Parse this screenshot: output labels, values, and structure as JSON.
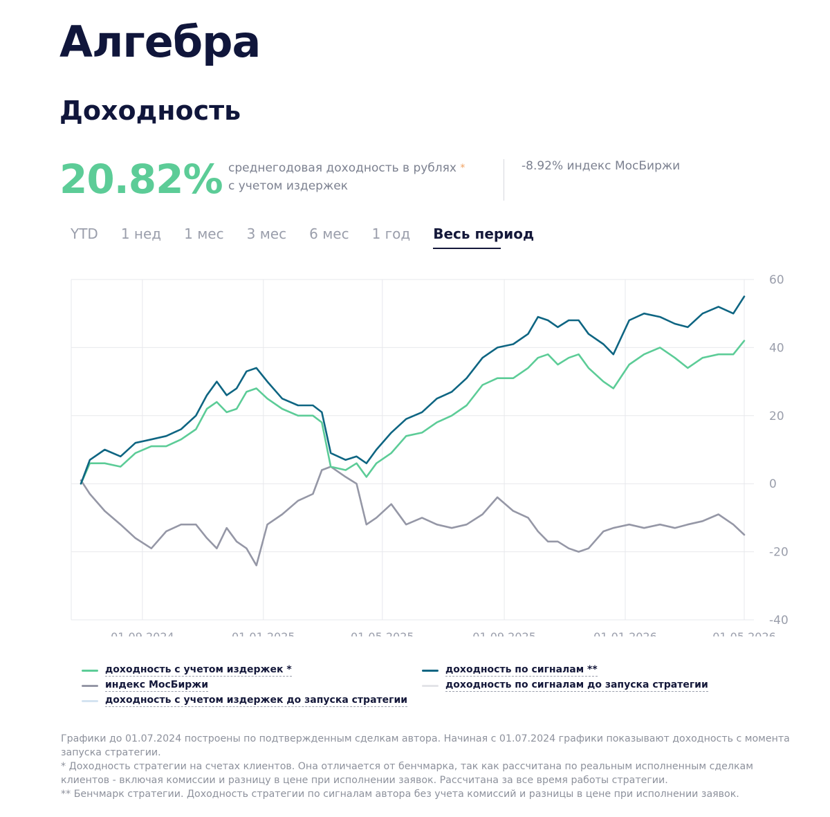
{
  "header": {
    "title": "Алгебра",
    "subtitle": "Доходность"
  },
  "summary": {
    "annual_return": "20.82%",
    "description_line1": "среднегодовая доходность в рублях",
    "description_line2": "с учетом издержек",
    "asterisk": "*",
    "index_text": "-8.92% индекс МосБиржи"
  },
  "tabs": [
    {
      "label": "YTD"
    },
    {
      "label": "1 нед"
    },
    {
      "label": "1 мес"
    },
    {
      "label": "3 мес"
    },
    {
      "label": "6 мес"
    },
    {
      "label": "1 год"
    },
    {
      "label": "Весь период",
      "active": true
    }
  ],
  "legend": {
    "net": "доходность с учетом издержек *",
    "signals": "доходность по сигналам **",
    "index": "индекс МосБиржи",
    "signals_pre": "доходность по сигналам до запуска стратегии",
    "net_pre": "доходность с учетом издержек до запуска стратегии"
  },
  "notes": [
    "Графики до 01.07.2024 построены по подтвержденным сделкам автора. Начиная с 01.07.2024 графики показывают доходность с момента запуска стратегии.",
    "* Доходность стратегии на счетах клиентов. Она отличается от бенчмарка, так как рассчитана по реальным исполненным сделкам клиентов - включая комиссии и разницу в цене при исполнении заявок. Рассчитана за все время работы стратегии.",
    "** Бенчмарк стратегии. Доходность стратегии по сигналам автора без учета комиссий и разницы в цене при исполнении заявок."
  ],
  "colors": {
    "net": "#5ccc97",
    "signals": "#0e6582",
    "index": "#9597a6",
    "signals_pre": "#e3e4e8",
    "net_pre": "#d4e3f1",
    "grid": "#e7e8ec",
    "axis_text": "#9a9eab"
  },
  "chart_data": {
    "type": "line",
    "x_type": "date",
    "x_range": [
      "2024-07-01",
      "2026-05-01"
    ],
    "x_ticks": [
      "01.09.2024",
      "01.01.2025",
      "01.05.2025",
      "01.09.2025",
      "01.01.2026",
      "01.05.2026"
    ],
    "x_tick_dates": [
      "2024-09-01",
      "2025-01-01",
      "2025-05-01",
      "2025-09-01",
      "2026-01-01",
      "2026-05-01"
    ],
    "y_ticks": [
      60,
      40,
      20,
      0,
      -20,
      -40
    ],
    "ylim": [
      -40,
      60
    ],
    "y_axis_side": "right",
    "grid": true,
    "legend_position": "bottom",
    "series": [
      {
        "name": "доходность с учетом издержек *",
        "key": "net",
        "points": [
          [
            "2024-07-01",
            0
          ],
          [
            "2024-07-10",
            6
          ],
          [
            "2024-07-25",
            6
          ],
          [
            "2024-08-10",
            5
          ],
          [
            "2024-08-25",
            9
          ],
          [
            "2024-09-10",
            11
          ],
          [
            "2024-09-25",
            11
          ],
          [
            "2024-10-10",
            13
          ],
          [
            "2024-10-25",
            16
          ],
          [
            "2024-11-05",
            22
          ],
          [
            "2024-11-15",
            24
          ],
          [
            "2024-11-25",
            21
          ],
          [
            "2024-12-05",
            22
          ],
          [
            "2024-12-15",
            27
          ],
          [
            "2024-12-25",
            28
          ],
          [
            "2025-01-05",
            25
          ],
          [
            "2025-01-20",
            22
          ],
          [
            "2025-02-05",
            20
          ],
          [
            "2025-02-20",
            20
          ],
          [
            "2025-03-01",
            18
          ],
          [
            "2025-03-10",
            5
          ],
          [
            "2025-03-25",
            4
          ],
          [
            "2025-04-05",
            6
          ],
          [
            "2025-04-15",
            2
          ],
          [
            "2025-04-25",
            6
          ],
          [
            "2025-05-10",
            9
          ],
          [
            "2025-05-25",
            14
          ],
          [
            "2025-06-10",
            15
          ],
          [
            "2025-06-25",
            18
          ],
          [
            "2025-07-10",
            20
          ],
          [
            "2025-07-25",
            23
          ],
          [
            "2025-08-10",
            29
          ],
          [
            "2025-08-25",
            31
          ],
          [
            "2025-09-10",
            31
          ],
          [
            "2025-09-25",
            34
          ],
          [
            "2025-10-05",
            37
          ],
          [
            "2025-10-15",
            38
          ],
          [
            "2025-10-25",
            35
          ],
          [
            "2025-11-05",
            37
          ],
          [
            "2025-11-15",
            38
          ],
          [
            "2025-11-25",
            34
          ],
          [
            "2025-12-10",
            30
          ],
          [
            "2025-12-20",
            28
          ],
          [
            "2026-01-05",
            35
          ],
          [
            "2026-01-20",
            38
          ],
          [
            "2026-02-05",
            40
          ],
          [
            "2026-02-20",
            37
          ],
          [
            "2026-03-05",
            34
          ],
          [
            "2026-03-20",
            37
          ],
          [
            "2026-04-05",
            38
          ],
          [
            "2026-04-20",
            38
          ],
          [
            "2026-05-01",
            42
          ]
        ]
      },
      {
        "name": "доходность по сигналам **",
        "key": "signals",
        "points": [
          [
            "2024-07-01",
            0
          ],
          [
            "2024-07-10",
            7
          ],
          [
            "2024-07-25",
            10
          ],
          [
            "2024-08-10",
            8
          ],
          [
            "2024-08-25",
            12
          ],
          [
            "2024-09-10",
            13
          ],
          [
            "2024-09-25",
            14
          ],
          [
            "2024-10-10",
            16
          ],
          [
            "2024-10-25",
            20
          ],
          [
            "2024-11-05",
            26
          ],
          [
            "2024-11-15",
            30
          ],
          [
            "2024-11-25",
            26
          ],
          [
            "2024-12-05",
            28
          ],
          [
            "2024-12-15",
            33
          ],
          [
            "2024-12-25",
            34
          ],
          [
            "2025-01-05",
            30
          ],
          [
            "2025-01-20",
            25
          ],
          [
            "2025-02-05",
            23
          ],
          [
            "2025-02-20",
            23
          ],
          [
            "2025-03-01",
            21
          ],
          [
            "2025-03-10",
            9
          ],
          [
            "2025-03-25",
            7
          ],
          [
            "2025-04-05",
            8
          ],
          [
            "2025-04-15",
            6
          ],
          [
            "2025-04-25",
            10
          ],
          [
            "2025-05-10",
            15
          ],
          [
            "2025-05-25",
            19
          ],
          [
            "2025-06-10",
            21
          ],
          [
            "2025-06-25",
            25
          ],
          [
            "2025-07-10",
            27
          ],
          [
            "2025-07-25",
            31
          ],
          [
            "2025-08-10",
            37
          ],
          [
            "2025-08-25",
            40
          ],
          [
            "2025-09-10",
            41
          ],
          [
            "2025-09-25",
            44
          ],
          [
            "2025-10-05",
            49
          ],
          [
            "2025-10-15",
            48
          ],
          [
            "2025-10-25",
            46
          ],
          [
            "2025-11-05",
            48
          ],
          [
            "2025-11-15",
            48
          ],
          [
            "2025-11-25",
            44
          ],
          [
            "2025-12-10",
            41
          ],
          [
            "2025-12-20",
            38
          ],
          [
            "2026-01-05",
            48
          ],
          [
            "2026-01-20",
            50
          ],
          [
            "2026-02-05",
            49
          ],
          [
            "2026-02-20",
            47
          ],
          [
            "2026-03-05",
            46
          ],
          [
            "2026-03-20",
            50
          ],
          [
            "2026-04-05",
            52
          ],
          [
            "2026-04-20",
            50
          ],
          [
            "2026-05-01",
            55
          ]
        ]
      },
      {
        "name": "индекс МосБиржи",
        "key": "index",
        "points": [
          [
            "2024-07-01",
            1
          ],
          [
            "2024-07-10",
            -3
          ],
          [
            "2024-07-25",
            -8
          ],
          [
            "2024-08-10",
            -12
          ],
          [
            "2024-08-25",
            -16
          ],
          [
            "2024-09-10",
            -19
          ],
          [
            "2024-09-25",
            -14
          ],
          [
            "2024-10-10",
            -12
          ],
          [
            "2024-10-25",
            -12
          ],
          [
            "2024-11-05",
            -16
          ],
          [
            "2024-11-15",
            -19
          ],
          [
            "2024-11-25",
            -13
          ],
          [
            "2024-12-05",
            -17
          ],
          [
            "2024-12-15",
            -19
          ],
          [
            "2024-12-25",
            -24
          ],
          [
            "2025-01-05",
            -12
          ],
          [
            "2025-01-20",
            -9
          ],
          [
            "2025-02-05",
            -5
          ],
          [
            "2025-02-20",
            -3
          ],
          [
            "2025-03-01",
            4
          ],
          [
            "2025-03-10",
            5
          ],
          [
            "2025-03-25",
            2
          ],
          [
            "2025-04-05",
            0
          ],
          [
            "2025-04-15",
            -12
          ],
          [
            "2025-04-25",
            -10
          ],
          [
            "2025-05-10",
            -6
          ],
          [
            "2025-05-25",
            -12
          ],
          [
            "2025-06-10",
            -10
          ],
          [
            "2025-06-25",
            -12
          ],
          [
            "2025-07-10",
            -13
          ],
          [
            "2025-07-25",
            -12
          ],
          [
            "2025-08-10",
            -9
          ],
          [
            "2025-08-25",
            -4
          ],
          [
            "2025-09-10",
            -8
          ],
          [
            "2025-09-25",
            -10
          ],
          [
            "2025-10-05",
            -14
          ],
          [
            "2025-10-15",
            -17
          ],
          [
            "2025-10-25",
            -17
          ],
          [
            "2025-11-05",
            -19
          ],
          [
            "2025-11-15",
            -20
          ],
          [
            "2025-11-25",
            -19
          ],
          [
            "2025-12-10",
            -14
          ],
          [
            "2025-12-20",
            -13
          ],
          [
            "2026-01-05",
            -12
          ],
          [
            "2026-01-20",
            -13
          ],
          [
            "2026-02-05",
            -12
          ],
          [
            "2026-02-20",
            -13
          ],
          [
            "2026-03-05",
            -12
          ],
          [
            "2026-03-20",
            -11
          ],
          [
            "2026-04-05",
            -9
          ],
          [
            "2026-04-20",
            -12
          ],
          [
            "2026-05-01",
            -15
          ]
        ]
      }
    ]
  }
}
